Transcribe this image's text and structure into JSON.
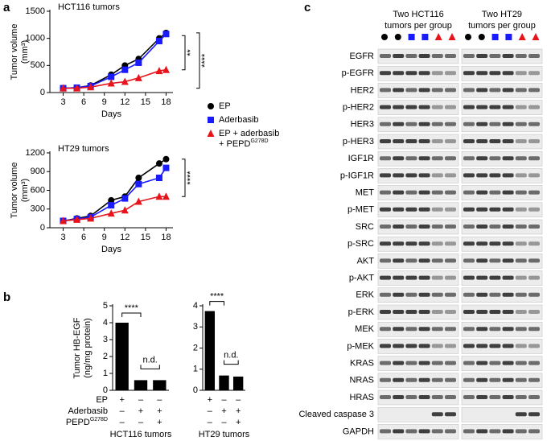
{
  "panel_labels": [
    "a",
    "b",
    "c"
  ],
  "chart_data": [
    {
      "type": "line",
      "title": "HCT116 tumors",
      "xlabel": "Days",
      "ylabel": [
        "Tumor volume",
        "(mm³)"
      ],
      "x": [
        3,
        5,
        7,
        10,
        12,
        14,
        17,
        18
      ],
      "xlim": [
        2,
        19
      ],
      "xticks": [
        3,
        6,
        9,
        12,
        15,
        18
      ],
      "ylim": [
        0,
        1500
      ],
      "yticks": [
        0,
        500,
        1000,
        1500
      ],
      "series": [
        {
          "name": "EP",
          "color": "#000000",
          "marker": "circle",
          "values": [
            80,
            90,
            130,
            330,
            500,
            620,
            1000,
            1100
          ]
        },
        {
          "name": "Aderbasib",
          "color": "#1a1aff",
          "marker": "square",
          "values": [
            80,
            90,
            120,
            290,
            420,
            550,
            950,
            1080
          ]
        },
        {
          "name": "EP + aderbasib\n+ PEPD",
          "name_sup": "G278D",
          "color": "#e8141b",
          "marker": "triangle",
          "values": [
            80,
            80,
            100,
            170,
            200,
            270,
            400,
            420
          ]
        }
      ],
      "annotations": [
        "**",
        "****"
      ]
    },
    {
      "type": "line",
      "title": "HT29 tumors",
      "xlabel": "Days",
      "ylabel": [
        "Tumor volume",
        "(mm³)"
      ],
      "x": [
        3,
        5,
        7,
        10,
        12,
        14,
        17,
        18
      ],
      "xlim": [
        2,
        19
      ],
      "xticks": [
        3,
        6,
        9,
        12,
        15,
        18
      ],
      "ylim": [
        0,
        1200
      ],
      "yticks": [
        0,
        300,
        600,
        900,
        1200
      ],
      "series": [
        {
          "color": "#000000",
          "marker": "circle",
          "values": [
            110,
            150,
            190,
            440,
            500,
            800,
            1030,
            1100
          ]
        },
        {
          "color": "#1a1aff",
          "marker": "square",
          "values": [
            110,
            140,
            170,
            360,
            470,
            700,
            800,
            960
          ]
        },
        {
          "color": "#e8141b",
          "marker": "triangle",
          "values": [
            110,
            130,
            150,
            230,
            280,
            420,
            500,
            500
          ]
        }
      ],
      "annotations": [
        "****"
      ]
    },
    {
      "type": "bar",
      "xlabel": "HCT116 tumors",
      "ylabel": [
        "Tumor HB-EGF",
        "(ng/mg protein)"
      ],
      "categories": [
        null,
        null,
        null
      ],
      "values": [
        4.0,
        0.6,
        0.6
      ],
      "color": "#000000",
      "ylim": [
        0,
        5
      ],
      "yticks": [
        0,
        1,
        2,
        3,
        4,
        5
      ],
      "annotations": [
        "****",
        "n.d."
      ],
      "condition_labels": [
        "EP",
        "Aderbasib",
        "PEPD"
      ],
      "condition_sup": "G278D",
      "signs": [
        [
          "+",
          "–",
          "–"
        ],
        [
          "–",
          "+",
          "+"
        ],
        [
          "–",
          "–",
          "+"
        ]
      ]
    },
    {
      "type": "bar",
      "xlabel": "HT29 tumors",
      "categories": [
        null,
        null,
        null
      ],
      "values": [
        3.75,
        0.7,
        0.65
      ],
      "color": "#000000",
      "ylim": [
        0,
        4
      ],
      "yticks": [
        0,
        1,
        2,
        3,
        4
      ],
      "annotations": [
        "****",
        "n.d."
      ],
      "signs": [
        [
          "+",
          "–",
          "–"
        ],
        [
          "–",
          "+",
          "+"
        ],
        [
          "–",
          "–",
          "+"
        ]
      ]
    }
  ],
  "blot": {
    "groups": [
      "Two HCT116\ntumors per group",
      "Two HT29\ntumors per group"
    ],
    "rows": [
      "EGFR",
      "p-EGFR",
      "HER2",
      "p-HER2",
      "HER3",
      "p-HER3",
      "IGF1R",
      "p-IGF1R",
      "MET",
      "p-MET",
      "SRC",
      "p-SRC",
      "AKT",
      "p-AKT",
      "ERK",
      "p-ERK",
      "MEK",
      "p-MEK",
      "KRAS",
      "NRAS",
      "HRAS",
      "Cleaved caspase 3",
      "GAPDH"
    ]
  }
}
